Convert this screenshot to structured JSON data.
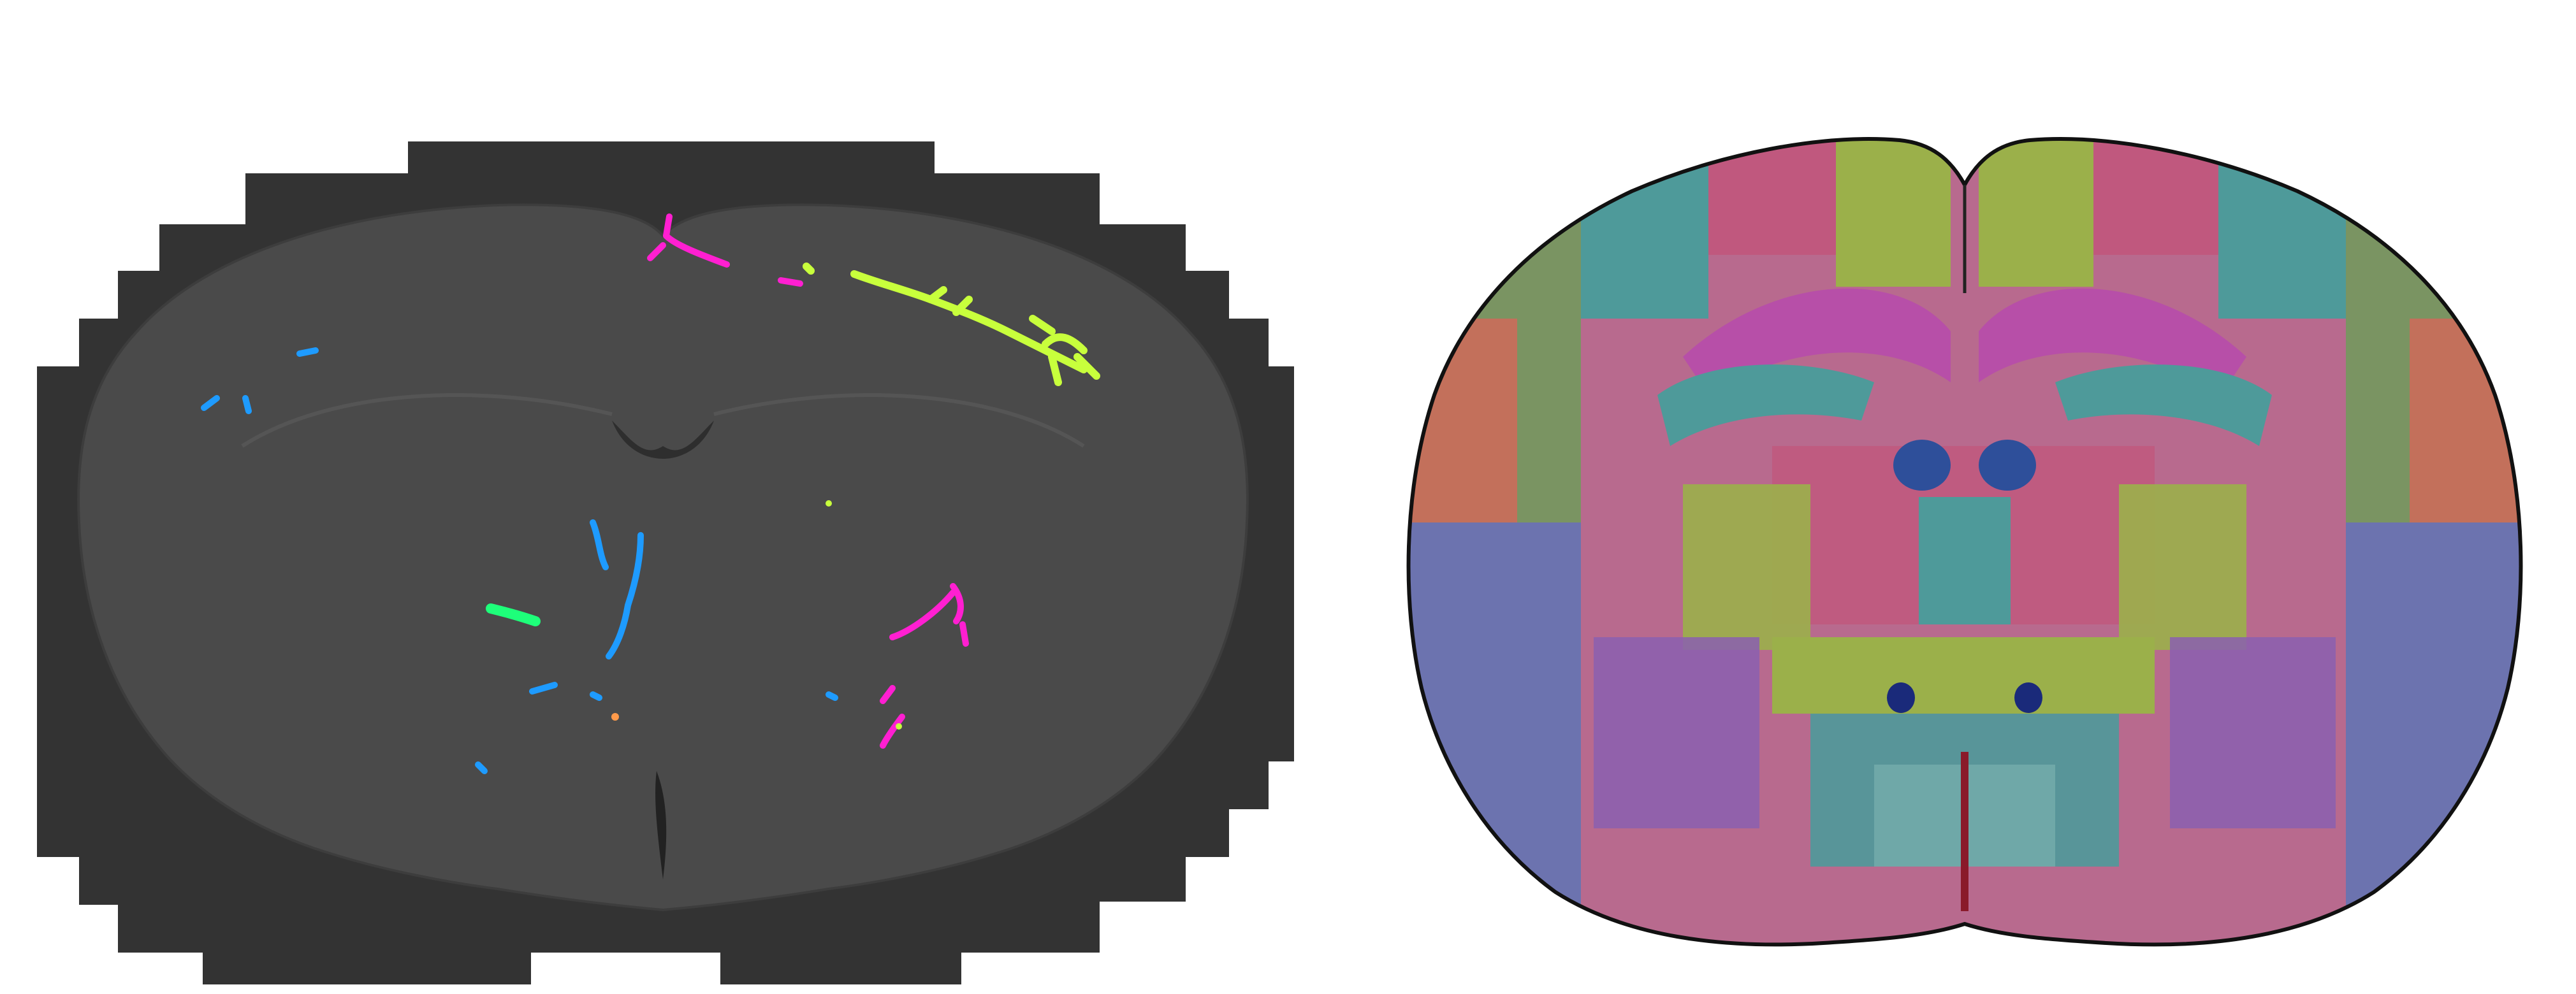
{
  "figure": {
    "panels": [
      {
        "id": "section-image",
        "kind": "grayscale coronal brain section microscopy mosaic with colored traced segments",
        "background_color": "#333333",
        "tissue_color": "#4a4a4a",
        "trace_colors": {
          "magenta": "#ff1fd1",
          "yellow_green": "#c8ff3c",
          "blue": "#1e9bff",
          "green": "#1eff7a",
          "orange": "#ff9a4a"
        }
      },
      {
        "id": "atlas-image",
        "kind": "coronal brain atlas with colored anatomical regions",
        "outline_color": "#111111",
        "region_palette": [
          "#c0587e",
          "#b74fa8",
          "#6e9b5a",
          "#4e9a9a",
          "#6a6fb8",
          "#c88a4a",
          "#9bb04a",
          "#4e6fb8",
          "#8a5fb0",
          "#d06a5a"
        ]
      }
    ]
  }
}
